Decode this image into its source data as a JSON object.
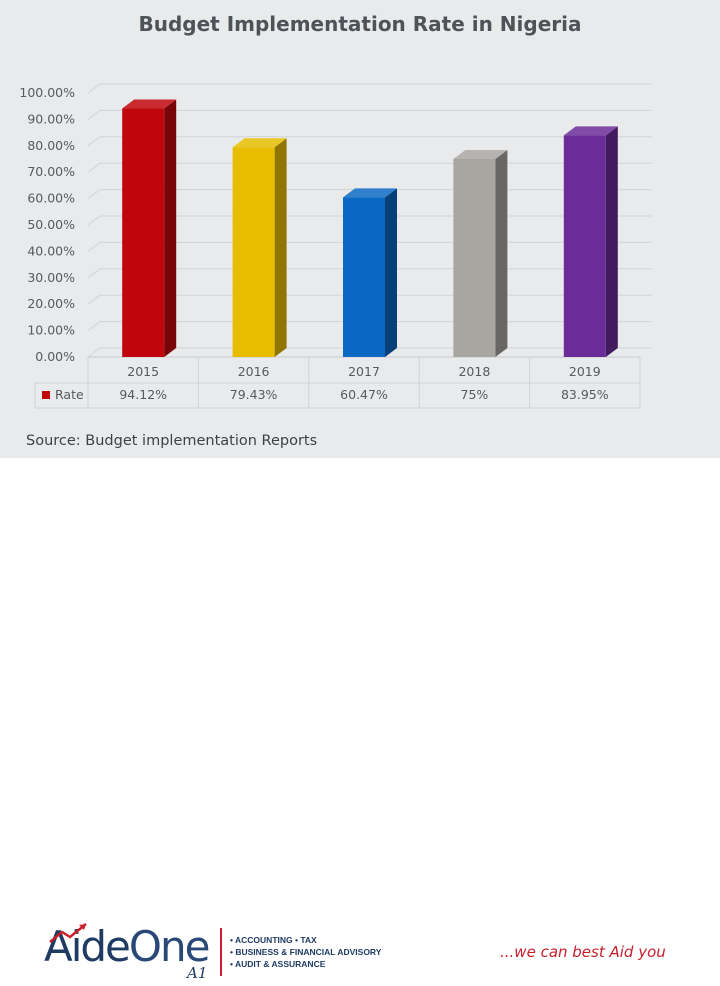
{
  "chart_data": {
    "type": "bar",
    "style": "3d-column",
    "title": "Budget Implementation Rate in Nigeria",
    "categories": [
      "2015",
      "2016",
      "2017",
      "2018",
      "2019"
    ],
    "series": [
      {
        "name": "Rate",
        "values": [
          94.12,
          79.43,
          60.47,
          75,
          83.95
        ],
        "labels": [
          "94.12%",
          "79.43%",
          "60.47%",
          "75%",
          "83.95%"
        ],
        "colors": [
          "#c0060c",
          "#e8bd00",
          "#0b68c2",
          "#a9a6a2",
          "#6a2c98"
        ]
      }
    ],
    "ylim": [
      0,
      100
    ],
    "ytick_values": [
      0,
      10,
      20,
      30,
      40,
      50,
      60,
      70,
      80,
      90,
      100
    ],
    "ytick_labels": [
      "0.00%",
      "10.00%",
      "20.00%",
      "30.00%",
      "40.00%",
      "50.00%",
      "60.00%",
      "70.00%",
      "80.00%",
      "90.00%",
      "100.00%"
    ],
    "grid": true,
    "data_table": true,
    "legend_marker_color": "#c0060c"
  },
  "source": "Source: Budget implementation Reports",
  "brand": {
    "logo_part1": "Aide",
    "logo_part2": "One",
    "logo_mark": "A1",
    "services": [
      "• Accounting • Tax",
      "• Business & Financial Advisory",
      "• Audit & Assurance"
    ],
    "tagline": "...we can best Aid you"
  }
}
